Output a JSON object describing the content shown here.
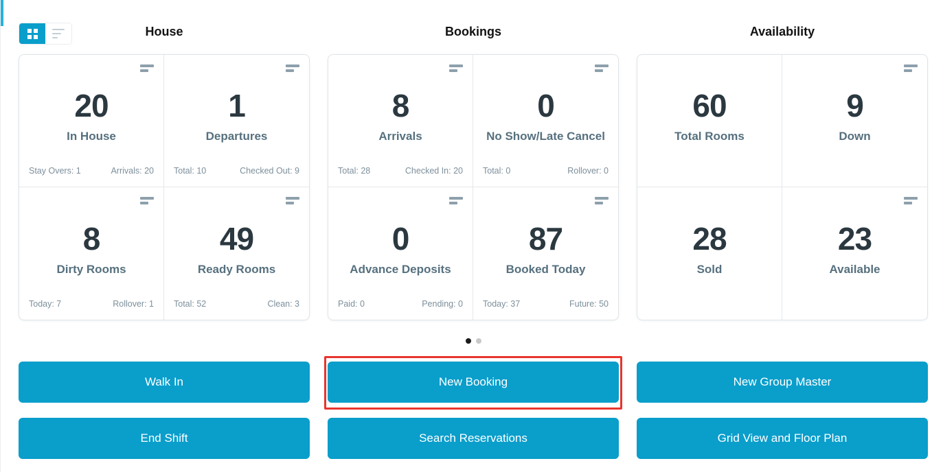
{
  "colors": {
    "accent": "#0a9ecb",
    "highlight_red": "#e8352e",
    "value_dark": "#2b3840"
  },
  "view_toggle": {
    "grid_icon": "grid-view-icon",
    "list_icon": "list-view-icon",
    "active": "grid"
  },
  "sections": [
    {
      "title": "House",
      "cards": [
        {
          "value": "20",
          "label": "In House",
          "stat_left": "Stay Overs: 1",
          "stat_right": "Arrivals: 20"
        },
        {
          "value": "1",
          "label": "Departures",
          "stat_left": "Total: 10",
          "stat_right": "Checked Out: 9"
        },
        {
          "value": "8",
          "label": "Dirty Rooms",
          "stat_left": "Today: 7",
          "stat_right": "Rollover: 1"
        },
        {
          "value": "49",
          "label": "Ready Rooms",
          "stat_left": "Total: 52",
          "stat_right": "Clean: 3"
        }
      ]
    },
    {
      "title": "Bookings",
      "cards": [
        {
          "value": "8",
          "label": "Arrivals",
          "stat_left": "Total: 28",
          "stat_right": "Checked In: 20"
        },
        {
          "value": "0",
          "label": "No Show/Late Cancel",
          "stat_left": "Total: 0",
          "stat_right": "Rollover: 0"
        },
        {
          "value": "0",
          "label": "Advance Deposits",
          "stat_left": "Paid: 0",
          "stat_right": "Pending: 0"
        },
        {
          "value": "87",
          "label": "Booked Today",
          "stat_left": "Today: 37",
          "stat_right": "Future: 50"
        }
      ]
    },
    {
      "title": "Availability",
      "cards": [
        {
          "value": "60",
          "label": "Total Rooms",
          "stat_left": "",
          "stat_right": ""
        },
        {
          "value": "9",
          "label": "Down",
          "stat_left": "",
          "stat_right": ""
        },
        {
          "value": "28",
          "label": "Sold",
          "stat_left": "",
          "stat_right": ""
        },
        {
          "value": "23",
          "label": "Available",
          "stat_left": "",
          "stat_right": ""
        }
      ]
    }
  ],
  "carousel": {
    "page_count": 2,
    "active_page": 1
  },
  "actions": {
    "row1": [
      {
        "label": "Walk In"
      },
      {
        "label": "New Booking",
        "highlighted": true
      },
      {
        "label": "New Group Master"
      }
    ],
    "row2": [
      {
        "label": "End Shift"
      },
      {
        "label": "Search Reservations"
      },
      {
        "label": "Grid View and Floor Plan"
      }
    ]
  }
}
